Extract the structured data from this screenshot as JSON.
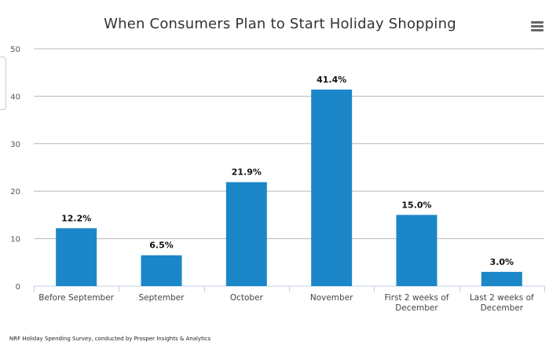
{
  "chart_data": {
    "type": "bar",
    "title": "When Consumers Plan to Start Holiday Shopping",
    "categories": [
      [
        "Before September"
      ],
      [
        "September"
      ],
      [
        "October"
      ],
      [
        "November"
      ],
      [
        "First 2 weeks of",
        "December"
      ],
      [
        "Last 2 weeks of",
        "December"
      ]
    ],
    "values": [
      12.2,
      6.5,
      21.9,
      41.4,
      15.0,
      3.0
    ],
    "data_labels": [
      "12.2%",
      "6.5%",
      "21.9%",
      "41.4%",
      "15.0%",
      "3.0%"
    ],
    "yticks": [
      "0",
      "10",
      "20",
      "30",
      "40",
      "50"
    ],
    "ylim": [
      0,
      50
    ],
    "grid": true,
    "legend": "none",
    "bar_color": "#1b87c9",
    "source": "NRF Holiday Spending Survey, conducted by Prosper Insights & Analytics"
  }
}
